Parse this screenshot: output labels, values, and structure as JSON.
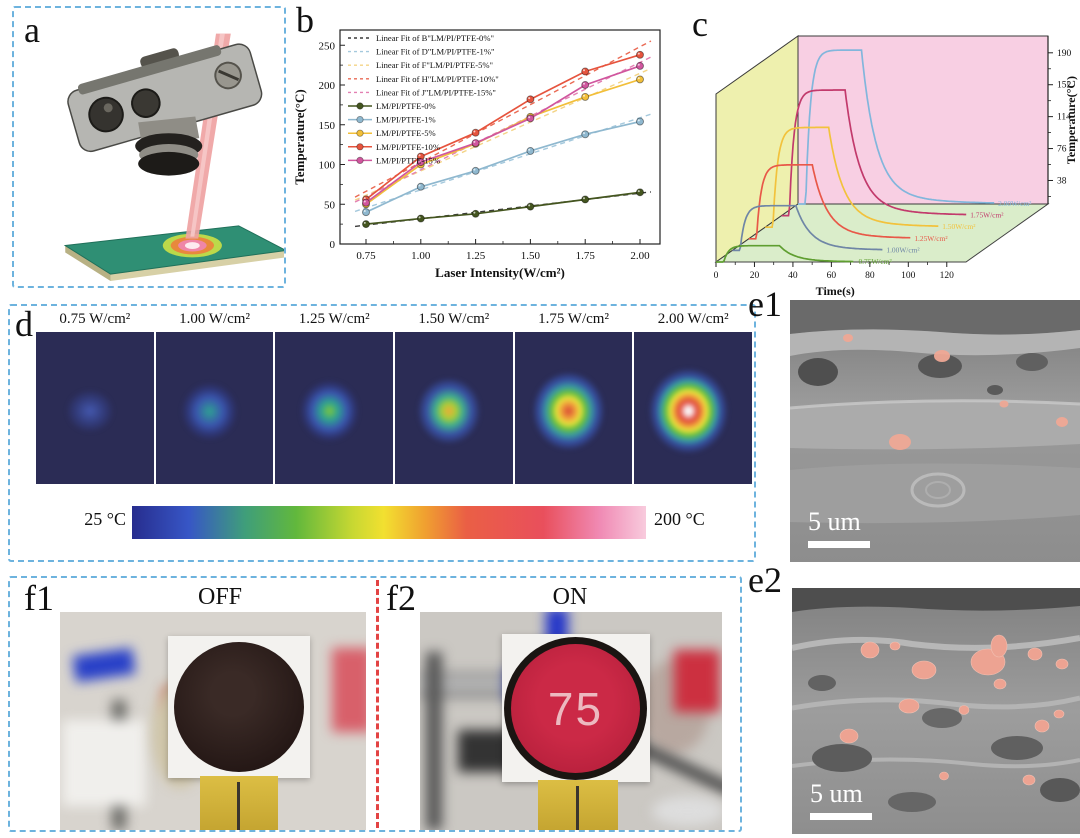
{
  "panels": {
    "a": {
      "label": "a"
    },
    "b": {
      "label": "b"
    },
    "c": {
      "label": "c"
    },
    "d": {
      "label": "d",
      "image_labels": [
        "0.75 W/cm²",
        "1.00 W/cm²",
        "1.25 W/cm²",
        "1.50 W/cm²",
        "1.75 W/cm²",
        "2.00 W/cm²"
      ],
      "colorbar_min": "25 °C",
      "colorbar_max": "200 °C"
    },
    "e1": {
      "label": "e1",
      "scalebar": "5 um"
    },
    "e2": {
      "label": "e2",
      "scalebar": "5 um"
    },
    "f1": {
      "label": "f1",
      "state": "OFF"
    },
    "f2": {
      "label": "f2",
      "state": "ON",
      "reading": "75"
    }
  },
  "chart_data": [
    {
      "id": "laser-intensity-vs-temperature",
      "type": "line",
      "xlabel": "Laser Intensity(W/cm²)",
      "ylabel": "Temperature(°C)",
      "x": [
        0.75,
        1.0,
        1.25,
        1.5,
        1.75,
        2.0
      ],
      "xticks": [
        "0.75",
        "1.00",
        "1.25",
        "1.50",
        "1.75",
        "2.00"
      ],
      "yticks": [
        0,
        50,
        100,
        150,
        200,
        250
      ],
      "xlim": [
        0.65,
        2.08
      ],
      "ylim": [
        0,
        270
      ],
      "grid": false,
      "legend_position": "top-left",
      "series": [
        {
          "name": "LM/PI/PTFE-0%",
          "color": "#44551f",
          "values": [
            25,
            32,
            38,
            47,
            56,
            65
          ]
        },
        {
          "name": "LM/PI/PTFE-1%",
          "color": "#8fb8cf",
          "values": [
            40,
            72,
            92,
            117,
            138,
            154
          ]
        },
        {
          "name": "LM/PI/PTFE-5%",
          "color": "#f2bf3a",
          "values": [
            50,
            100,
            126,
            160,
            185,
            207
          ]
        },
        {
          "name": "LM/PI/PTFE-10%",
          "color": "#e6543e",
          "values": [
            56,
            110,
            140,
            182,
            217,
            238
          ]
        },
        {
          "name": "LM/PI/PTFE-15%",
          "color": "#d0569e",
          "values": [
            52,
            103,
            127,
            158,
            200,
            224
          ]
        }
      ],
      "linear_fits": [
        {
          "label": "Linear Fit of B\"LM/PI/PTFE-0%\"",
          "color": "#3a3a3a",
          "series": 0
        },
        {
          "label": "Linear Fit of D\"LM/PI/PTFE-1%\"",
          "color": "#a5c9dd",
          "series": 1
        },
        {
          "label": "Linear Fit of F\"LM/PI/PTFE-5%\"",
          "color": "#f4d486",
          "series": 2
        },
        {
          "label": "Linear Fit of H\"LM/PI/PTFE-10%\"",
          "color": "#ea6a54",
          "series": 3
        },
        {
          "label": "Linear Fit of J\"LM/PI/PTFE-15%\"",
          "color": "#e380b2",
          "series": 4
        }
      ]
    },
    {
      "id": "photothermal-heating-cooling-curves",
      "type": "line",
      "projection": "3d-waterfall",
      "xlabel": "Time(s)",
      "ylabel": "Temperature(°C)",
      "xticks": [
        0,
        20,
        40,
        60,
        80,
        100,
        120
      ],
      "yticks": [
        38,
        76,
        114,
        152,
        190
      ],
      "laser_on_s": 4,
      "laser_off_s": 33,
      "base_temp": 26,
      "series": [
        {
          "name": "0.75W/cm²",
          "color": "#5f9e30",
          "peak_temp": 45
        },
        {
          "name": "1.00W/cm²",
          "color": "#6f86a6",
          "peak_temp": 78
        },
        {
          "name": "1.25W/cm²",
          "color": "#e85848",
          "peak_temp": 112
        },
        {
          "name": "1.50W/cm²",
          "color": "#f2c23c",
          "peak_temp": 142
        },
        {
          "name": "1.75W/cm²",
          "color": "#c23a6c",
          "peak_temp": 172
        },
        {
          "name": "2.00W/cm²",
          "color": "#82b6dc",
          "peak_temp": 205
        }
      ]
    }
  ]
}
